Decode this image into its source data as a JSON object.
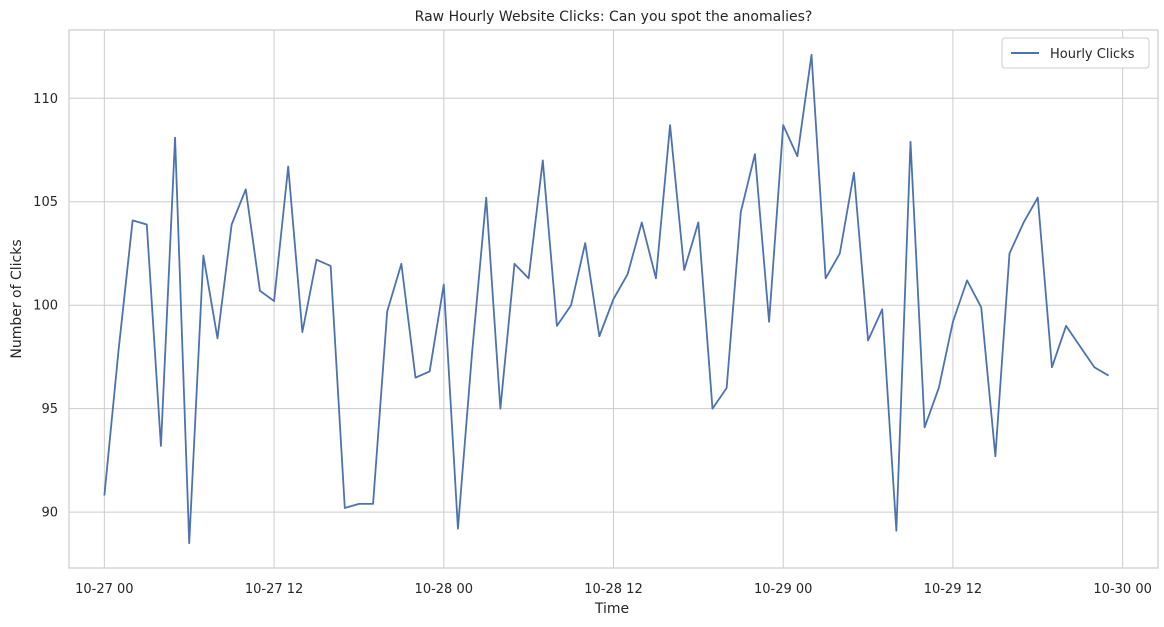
{
  "chart_data": {
    "type": "line",
    "title": "Raw Hourly Website Clicks: Can you spot the anomalies?",
    "xlabel": "Time",
    "ylabel": "Number of Clicks",
    "x_start": "2023-10-27 00:00",
    "x_step_hours": 1,
    "xlim": [
      "2023-10-26 21:30",
      "2023-10-30 02:30"
    ],
    "ylim": [
      87.3,
      113.3
    ],
    "x_ticks": [
      {
        "value": "2023-10-27 00:00",
        "label": "10-27 00"
      },
      {
        "value": "2023-10-27 12:00",
        "label": "10-27 12"
      },
      {
        "value": "2023-10-28 00:00",
        "label": "10-28 00"
      },
      {
        "value": "2023-10-28 12:00",
        "label": "10-28 12"
      },
      {
        "value": "2023-10-29 00:00",
        "label": "10-29 00"
      },
      {
        "value": "2023-10-29 12:00",
        "label": "10-29 12"
      },
      {
        "value": "2023-10-30 00:00",
        "label": "10-30 00"
      }
    ],
    "y_ticks": [
      90,
      95,
      100,
      105,
      110
    ],
    "grid": true,
    "legend_position": "top-right",
    "line_color": "#4c72b0",
    "series": [
      {
        "name": "Hourly Clicks",
        "values": [
          90.8,
          97.8,
          104.1,
          103.9,
          93.2,
          108.1,
          88.5,
          102.4,
          98.4,
          103.9,
          105.6,
          100.7,
          100.2,
          106.7,
          98.7,
          102.2,
          101.9,
          90.2,
          90.4,
          90.4,
          99.7,
          102.0,
          96.5,
          96.8,
          101.0,
          89.2,
          97.7,
          105.2,
          95.0,
          102.0,
          101.3,
          107.0,
          99.0,
          100.0,
          103.0,
          98.5,
          100.3,
          101.5,
          104.0,
          101.3,
          108.7,
          101.7,
          104.0,
          95.0,
          96.0,
          104.5,
          107.3,
          99.2,
          108.7,
          107.2,
          112.1,
          101.3,
          102.5,
          106.4,
          98.3,
          99.8,
          89.1,
          107.9,
          94.1,
          96.0,
          99.2,
          101.2,
          99.9,
          92.7,
          102.5,
          104.0,
          105.2,
          97.0,
          99.0,
          98.0,
          97.0,
          96.6
        ]
      }
    ]
  }
}
